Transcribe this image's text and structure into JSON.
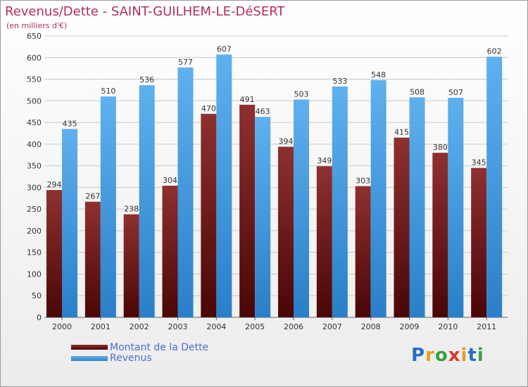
{
  "header": {
    "title": "Revenus/Dette - SAINT-GUILHEM-LE-DéSERT",
    "subtitle": "(en milliers d'€)"
  },
  "logo": {
    "letters": [
      "P",
      "r",
      "o",
      "x",
      "i",
      "t",
      "i"
    ],
    "colors": [
      "#2b6cc4",
      "#e2a020",
      "#3aa040",
      "#d93a2a",
      "#e2a020",
      "#2b6cc4",
      "#3aa040"
    ]
  },
  "chart_data": {
    "type": "bar",
    "categories": [
      "2000",
      "2001",
      "2002",
      "2003",
      "2004",
      "2005",
      "2006",
      "2007",
      "2008",
      "2009",
      "2010",
      "2011"
    ],
    "series": [
      {
        "name": "Montant de la Dette",
        "color": "#7a1a1a",
        "values": [
          294,
          267,
          238,
          304,
          470,
          491,
          394,
          349,
          303,
          415,
          380,
          345
        ]
      },
      {
        "name": "Revenus",
        "color": "#4a9fe0",
        "values": [
          435,
          510,
          536,
          577,
          607,
          463,
          503,
          533,
          548,
          508,
          507,
          602
        ]
      }
    ],
    "yticks": [
      0,
      50,
      100,
      150,
      200,
      250,
      300,
      350,
      400,
      450,
      500,
      550,
      600,
      650
    ],
    "ylim": [
      0,
      650
    ],
    "grid": true,
    "legend_position": "bottom-left"
  }
}
